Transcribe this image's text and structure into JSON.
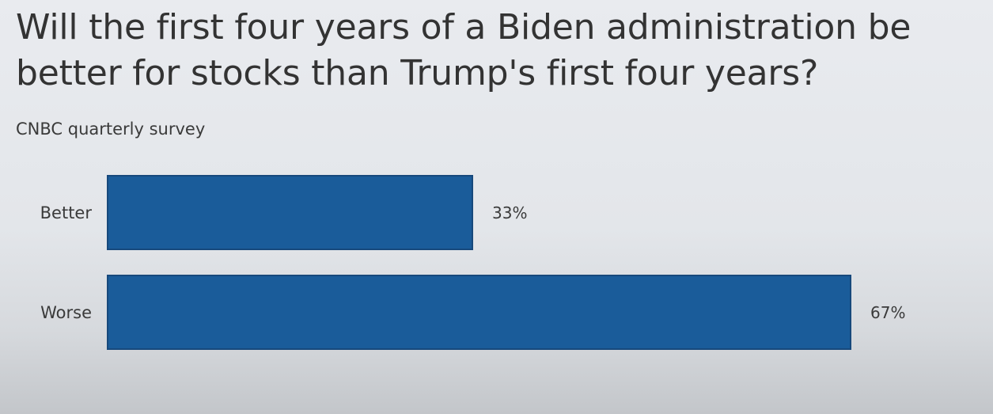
{
  "chart_data": {
    "type": "bar",
    "orientation": "horizontal",
    "title": "Will the first four years of a Biden administration be better for stocks than Trump's first four years?",
    "subtitle": "CNBC quarterly survey",
    "categories": [
      "Better",
      "Worse"
    ],
    "values": [
      33,
      67
    ],
    "value_labels": [
      "33%",
      "67%"
    ],
    "xlim": [
      0,
      67
    ],
    "grid": false,
    "bar_color": "#1a5c9a"
  }
}
